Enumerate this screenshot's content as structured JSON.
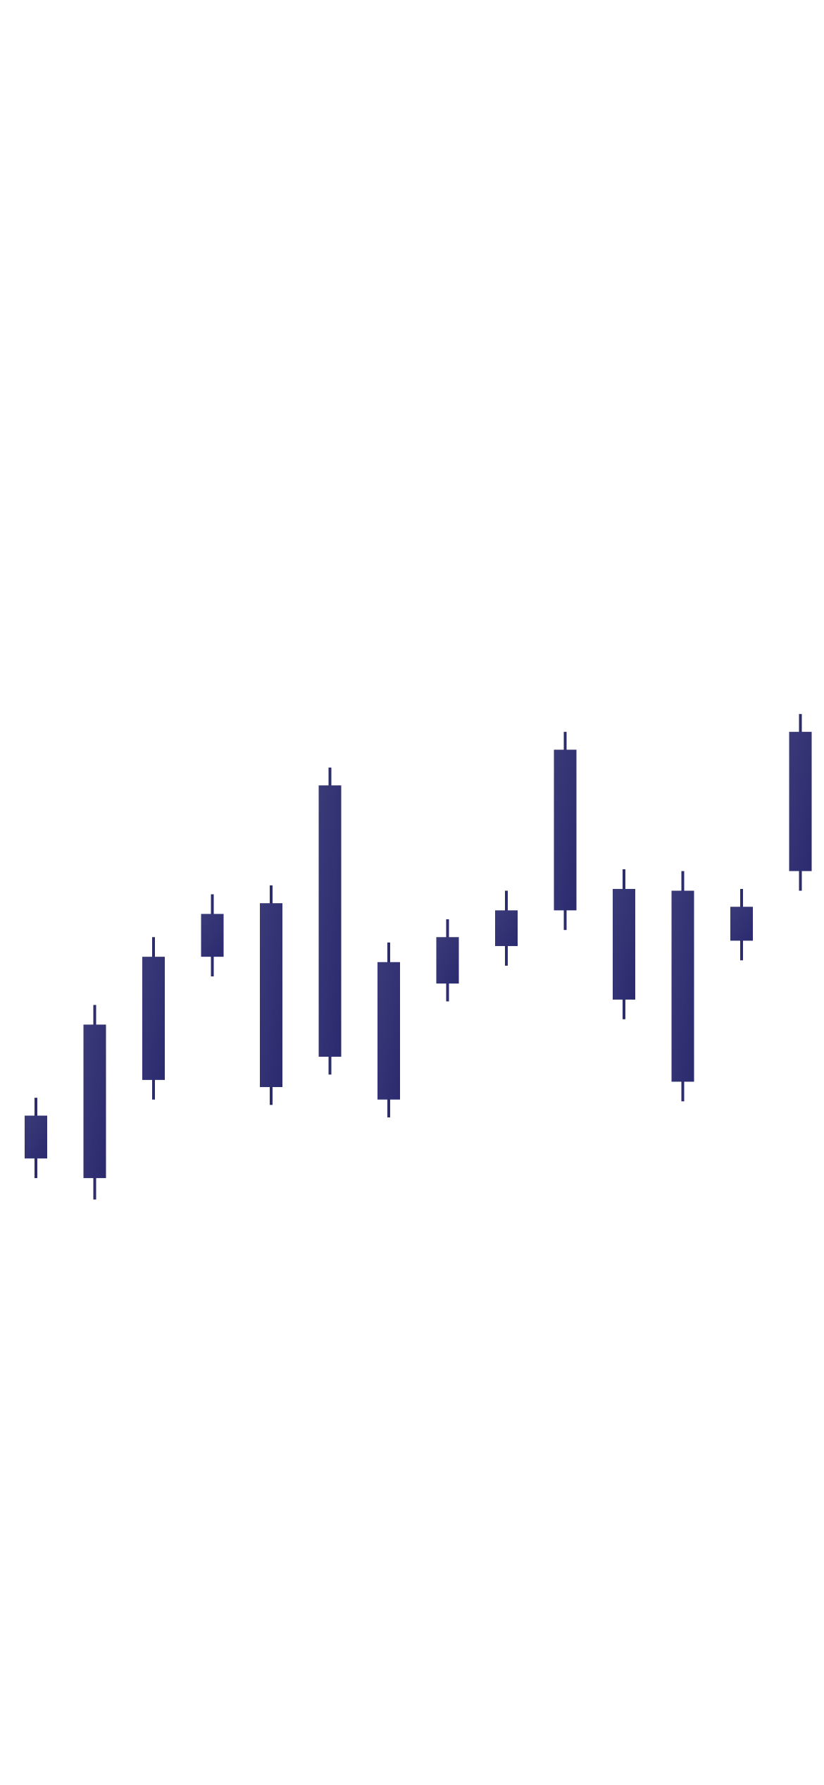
{
  "colors": {
    "background": "#ffffff",
    "candle": "#2e2d6b",
    "candle_gradient_light": "#3a3a78",
    "candle_gradient_dark": "#2b2a70"
  },
  "chart_data": {
    "type": "candlestick",
    "title": "",
    "xlabel": "",
    "ylabel": "",
    "axes_visible": false,
    "grid": false,
    "legend": "none",
    "ylim": [
      0,
      100
    ],
    "candles": [
      {
        "open": 35.1,
        "close": 37.5,
        "high": 38.5,
        "low": 34.0
      },
      {
        "open": 34.0,
        "close": 42.6,
        "high": 43.7,
        "low": 32.8
      },
      {
        "open": 39.5,
        "close": 46.4,
        "high": 47.5,
        "low": 38.4
      },
      {
        "open": 46.4,
        "close": 48.8,
        "high": 49.9,
        "low": 45.3
      },
      {
        "open": 39.1,
        "close": 49.4,
        "high": 50.4,
        "low": 38.1
      },
      {
        "open": 40.8,
        "close": 56.0,
        "high": 57.0,
        "low": 39.8
      },
      {
        "open": 38.4,
        "close": 46.1,
        "high": 47.2,
        "low": 37.4
      },
      {
        "open": 44.9,
        "close": 47.5,
        "high": 48.5,
        "low": 43.9
      },
      {
        "open": 47.0,
        "close": 49.0,
        "high": 50.1,
        "low": 45.9
      },
      {
        "open": 49.0,
        "close": 58.0,
        "high": 59.0,
        "low": 47.9
      },
      {
        "open": 44.0,
        "close": 50.2,
        "high": 51.3,
        "low": 42.9
      },
      {
        "open": 39.4,
        "close": 50.1,
        "high": 51.2,
        "low": 38.3
      },
      {
        "open": 47.3,
        "close": 49.2,
        "high": 50.2,
        "low": 46.2
      },
      {
        "open": 51.2,
        "close": 59.0,
        "high": 60.0,
        "low": 50.1
      }
    ]
  }
}
